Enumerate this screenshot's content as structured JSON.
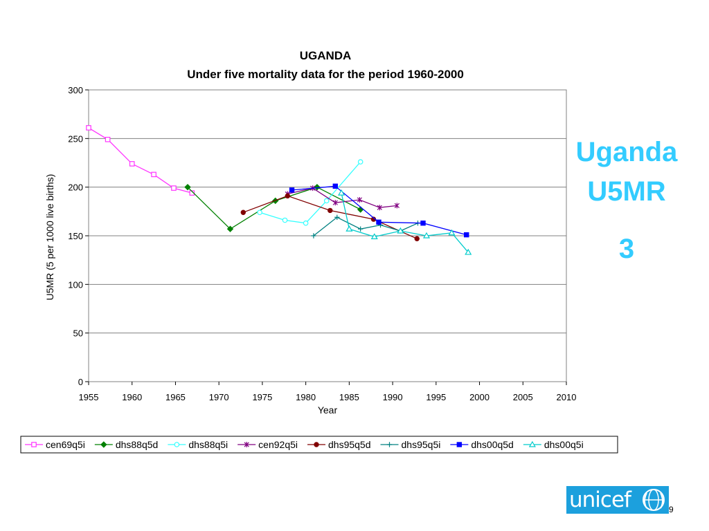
{
  "slide": {
    "side_label_line1": "Uganda",
    "side_label_line2": "U5MR",
    "side_label_line3": "3",
    "page_number": "9",
    "logo_text": "unicef",
    "accent_color": "#33ccff",
    "logo_color": "#1ca0dd"
  },
  "chart_data": {
    "type": "line",
    "title": "UGANDA",
    "subtitle": "Under five mortality data for the period 1960-2000",
    "xlabel": "Year",
    "ylabel": "U5MR (5 per 1000 live births)",
    "xlim": [
      1955,
      2010
    ],
    "ylim": [
      0,
      300
    ],
    "xticks": [
      1955,
      1960,
      1965,
      1970,
      1975,
      1980,
      1985,
      1990,
      1995,
      2000,
      2005,
      2010
    ],
    "yticks": [
      0,
      50,
      100,
      150,
      200,
      250,
      300
    ],
    "grid": "horizontal",
    "legend_position": "bottom",
    "series": [
      {
        "name": "cen69q5i",
        "color": "#ff33ff",
        "marker": "square-open",
        "points": [
          [
            1955,
            261
          ],
          [
            1957.2,
            249
          ],
          [
            1960,
            224
          ],
          [
            1962.5,
            213
          ],
          [
            1964.8,
            199
          ],
          [
            1966.9,
            194
          ]
        ]
      },
      {
        "name": "dhs88q5d",
        "color": "#008000",
        "marker": "diamond",
        "points": [
          [
            1966.4,
            200
          ],
          [
            1971.3,
            157
          ],
          [
            1976.5,
            186
          ],
          [
            1981.3,
            200
          ],
          [
            1986.3,
            177
          ]
        ]
      },
      {
        "name": "dhs88q5i",
        "color": "#33ffff",
        "marker": "circle-open",
        "points": [
          [
            1974.7,
            174
          ],
          [
            1977.6,
            166
          ],
          [
            1980,
            163
          ],
          [
            1982.4,
            186
          ],
          [
            1986.3,
            226
          ]
        ]
      },
      {
        "name": "cen92q5i",
        "color": "#800080",
        "marker": "star",
        "points": [
          [
            1977.9,
            193
          ],
          [
            1980.8,
            199
          ],
          [
            1983.4,
            184
          ],
          [
            1986.2,
            187
          ],
          [
            1988.5,
            179
          ],
          [
            1990.5,
            181
          ]
        ]
      },
      {
        "name": "dhs95q5d",
        "color": "#800000",
        "marker": "circle",
        "points": [
          [
            1972.8,
            174
          ],
          [
            1977.9,
            191
          ],
          [
            1982.8,
            176
          ],
          [
            1987.8,
            167
          ],
          [
            1992.8,
            147
          ]
        ]
      },
      {
        "name": "dhs95q5i",
        "color": "#008080",
        "marker": "plus",
        "points": [
          [
            1980.9,
            150
          ],
          [
            1983.6,
            169
          ],
          [
            1986.3,
            157
          ],
          [
            1988.6,
            161
          ],
          [
            1990.9,
            155
          ],
          [
            1992.9,
            163
          ]
        ]
      },
      {
        "name": "dhs00q5d",
        "color": "#0000ff",
        "marker": "square",
        "points": [
          [
            1978.4,
            197
          ],
          [
            1983.4,
            201
          ],
          [
            1988.4,
            164
          ],
          [
            1993.5,
            163
          ],
          [
            1998.5,
            151
          ]
        ]
      },
      {
        "name": "dhs00q5i",
        "color": "#00cccc",
        "marker": "triangle-open",
        "points": [
          [
            1984.1,
            194
          ],
          [
            1985,
            157
          ],
          [
            1987.9,
            149
          ],
          [
            1990.9,
            155
          ],
          [
            1993.9,
            150
          ],
          [
            1996.8,
            153
          ],
          [
            1998.7,
            133
          ]
        ]
      }
    ]
  }
}
